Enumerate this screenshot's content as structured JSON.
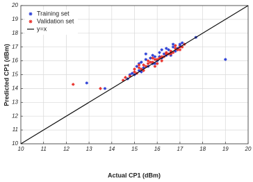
{
  "chart_data": {
    "type": "scatter",
    "xlabel": "Actual CP1 (dBm)",
    "ylabel": "Predicted CP1 (dBm)",
    "xlim": [
      10,
      20
    ],
    "ylim": [
      10,
      20
    ],
    "xticks": [
      10,
      11,
      12,
      13,
      14,
      15,
      16,
      17,
      18,
      19,
      20
    ],
    "yticks": [
      10,
      11,
      12,
      13,
      14,
      15,
      16,
      17,
      18,
      19,
      20
    ],
    "grid": true,
    "legend": "upper left",
    "series": [
      {
        "name": "Training set",
        "color": "#2b3fd6",
        "mode": "markers",
        "x": [
          14.7,
          14.9,
          15.0,
          15.1,
          15.2,
          15.3,
          15.4,
          15.5,
          15.6,
          15.7,
          15.8,
          15.9,
          16.0,
          16.1,
          16.2,
          16.3,
          16.4,
          16.5,
          16.6,
          16.7,
          16.8,
          16.9,
          17.0,
          17.1,
          15.2,
          15.5,
          15.8,
          16.1,
          16.4,
          16.7,
          17.0,
          14.8,
          15.3,
          15.9,
          16.2,
          16.6,
          12.9,
          13.7,
          19.0,
          17.7
        ],
        "y": [
          14.7,
          15.1,
          15.0,
          15.6,
          15.3,
          15.9,
          15.5,
          16.1,
          15.6,
          16.2,
          15.8,
          16.3,
          16.0,
          16.6,
          16.2,
          16.5,
          16.4,
          16.8,
          16.6,
          17.0,
          16.7,
          16.9,
          17.2,
          17.3,
          15.8,
          16.5,
          16.4,
          16.3,
          16.9,
          17.2,
          17.1,
          15.0,
          15.2,
          15.8,
          16.8,
          16.4,
          14.4,
          14.0,
          16.1,
          17.7
        ]
      },
      {
        "name": "Validation set",
        "color": "#e8302a",
        "mode": "markers",
        "x": [
          14.6,
          14.8,
          15.0,
          15.1,
          15.2,
          15.3,
          15.4,
          15.5,
          15.6,
          15.7,
          15.8,
          15.9,
          16.0,
          16.1,
          16.2,
          16.3,
          16.4,
          16.5,
          16.6,
          16.7,
          16.8,
          16.9,
          17.0,
          17.1,
          17.2,
          15.0,
          15.4,
          15.8,
          16.2,
          16.6,
          17.0,
          15.2,
          15.6,
          16.0,
          16.4,
          16.8,
          12.3,
          13.5,
          14.5,
          15.9
        ],
        "y": [
          14.8,
          14.9,
          15.2,
          15.1,
          15.5,
          15.4,
          15.7,
          15.6,
          15.8,
          15.9,
          15.9,
          16.1,
          16.1,
          16.2,
          16.3,
          16.3,
          16.5,
          16.5,
          16.7,
          16.6,
          16.9,
          16.8,
          17.0,
          17.0,
          17.2,
          15.4,
          15.3,
          16.2,
          16.0,
          16.5,
          16.8,
          15.7,
          16.0,
          15.8,
          16.6,
          17.1,
          14.3,
          14.0,
          14.6,
          15.6
        ]
      },
      {
        "name": "y=x",
        "color": "#111111",
        "mode": "line",
        "x": [
          10,
          20
        ],
        "y": [
          10,
          20
        ]
      }
    ]
  }
}
